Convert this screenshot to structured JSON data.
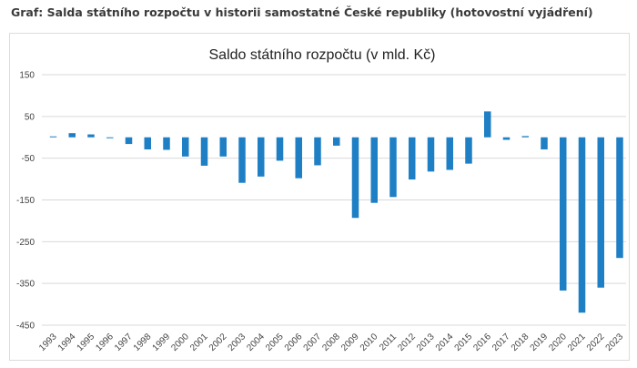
{
  "heading": "Graf: Salda státního rozpočtu v historii samostatné České republiky (hotovostní vyjádření)",
  "colors": {
    "bar": "#1f7fc4",
    "grid": "#d9d9d9",
    "text": "#444444"
  },
  "chart_data": {
    "type": "bar",
    "title": "Saldo státního rozpočtu (v mld. Kč)",
    "xlabel": "",
    "ylabel": "",
    "ylim": [
      -450,
      150
    ],
    "yticks": [
      150,
      50,
      -50,
      -150,
      -250,
      -350,
      -450
    ],
    "grid": true,
    "categories": [
      "1993",
      "1994",
      "1995",
      "1996",
      "1997",
      "1998",
      "1999",
      "2000",
      "2001",
      "2002",
      "2003",
      "2004",
      "2005",
      "2006",
      "2007",
      "2008",
      "2009",
      "2010",
      "2011",
      "2012",
      "2013",
      "2014",
      "2015",
      "2016",
      "2017",
      "2018",
      "2019",
      "2020",
      "2021",
      "2022",
      "2023"
    ],
    "values": [
      1,
      10,
      7,
      -2,
      -16,
      -29,
      -30,
      -46,
      -68,
      -46,
      -109,
      -94,
      -56,
      -98,
      -67,
      -20,
      -193,
      -157,
      -143,
      -101,
      -82,
      -78,
      -63,
      62,
      -6,
      3,
      -29,
      -367,
      -420,
      -360,
      -289
    ]
  }
}
